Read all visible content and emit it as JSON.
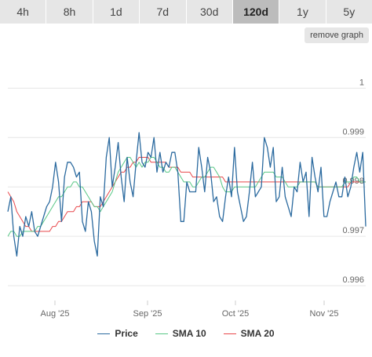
{
  "tabs": [
    {
      "label": "4h",
      "active": false
    },
    {
      "label": "8h",
      "active": false
    },
    {
      "label": "1d",
      "active": false
    },
    {
      "label": "7d",
      "active": false
    },
    {
      "label": "30d",
      "active": false
    },
    {
      "label": "120d",
      "active": true
    },
    {
      "label": "1y",
      "active": false
    },
    {
      "label": "5y",
      "active": false
    }
  ],
  "remove_graph_label": "remove graph",
  "colors": {
    "price": "#2b6a9f",
    "sma10": "#57c785",
    "sma20": "#e8474a",
    "grid": "#e6e6e6"
  },
  "chart_data": {
    "type": "line",
    "ylim": [
      0.9957,
      1.0008
    ],
    "y_ticks": [
      0.996,
      0.997,
      0.998,
      0.999,
      1
    ],
    "y_tick_labels": [
      "0.996",
      "0.997",
      "0.998",
      "0.999",
      "1"
    ],
    "x_tick_labels": [
      "Aug '25",
      "Sep '25",
      "Oct '25",
      "Nov '25"
    ],
    "legend_position": "bottom-center",
    "grid": true,
    "series": [
      {
        "name": "Price",
        "key": "price",
        "values": [
          0.9975,
          0.9978,
          0.997,
          0.9966,
          0.9972,
          0.997,
          0.9974,
          0.9972,
          0.9975,
          0.9971,
          0.997,
          0.9972,
          0.9974,
          0.9976,
          0.9977,
          0.998,
          0.9985,
          0.9981,
          0.9973,
          0.9982,
          0.9985,
          0.9985,
          0.9984,
          0.9982,
          0.9983,
          0.9973,
          0.9971,
          0.9977,
          0.9975,
          0.9969,
          0.9966,
          0.9978,
          0.9976,
          0.9986,
          0.999,
          0.998,
          0.9984,
          0.9989,
          0.9982,
          0.9977,
          0.9986,
          0.9981,
          0.9978,
          0.9985,
          0.9991,
          0.9985,
          0.9984,
          0.9987,
          0.9986,
          0.999,
          0.9983,
          0.9987,
          0.9983,
          0.9985,
          0.9984,
          0.9987,
          0.9987,
          0.9983,
          0.9973,
          0.9973,
          0.9981,
          0.9979,
          0.9979,
          0.9979,
          0.9988,
          0.9984,
          0.9979,
          0.9986,
          0.9983,
          0.9977,
          0.9978,
          0.9974,
          0.9973,
          0.9978,
          0.9982,
          0.9978,
          0.9988,
          0.9979,
          0.9976,
          0.9973,
          0.9974,
          0.9979,
          0.9985,
          0.9978,
          0.9979,
          0.998,
          0.999,
          0.9988,
          0.9984,
          0.9988,
          0.9977,
          0.9978,
          0.9984,
          0.9978,
          0.9976,
          0.9974,
          0.998,
          0.9979,
          0.9985,
          0.9981,
          0.9983,
          0.9974,
          0.9986,
          0.9982,
          0.9979,
          0.9984,
          0.9974,
          0.9974,
          0.9977,
          0.9979,
          0.9981,
          0.9978,
          0.9978,
          0.9982,
          0.9978,
          0.998,
          0.9984,
          0.9987,
          0.9983,
          0.9987,
          0.9972
        ]
      },
      {
        "name": "SMA 10",
        "key": "sma10",
        "values": [
          0.997,
          0.9971,
          0.9971,
          0.997,
          0.997,
          0.9971,
          0.9971,
          0.9971,
          0.9971,
          0.9971,
          0.9972,
          0.9972,
          0.9973,
          0.9974,
          0.9975,
          0.9976,
          0.9977,
          0.9978,
          0.9978,
          0.9979,
          0.998,
          0.998,
          0.9981,
          0.9981,
          0.998,
          0.998,
          0.9979,
          0.9978,
          0.9977,
          0.9976,
          0.9976,
          0.9975,
          0.9976,
          0.9977,
          0.9978,
          0.9979,
          0.9981,
          0.9983,
          0.9984,
          0.9985,
          0.9986,
          0.9986,
          0.9985,
          0.9984,
          0.9985,
          0.9984,
          0.9985,
          0.9985,
          0.9986,
          0.9986,
          0.9985,
          0.9984,
          0.9984,
          0.9983,
          0.9983,
          0.9984,
          0.9984,
          0.9983,
          0.9982,
          0.9981,
          0.9981,
          0.9981,
          0.998,
          0.998,
          0.9981,
          0.9982,
          0.9982,
          0.9983,
          0.9984,
          0.9984,
          0.9983,
          0.9982,
          0.998,
          0.9979,
          0.9979,
          0.9979,
          0.998,
          0.998,
          0.998,
          0.998,
          0.998,
          0.998,
          0.998,
          0.998,
          0.9981,
          0.9982,
          0.9983,
          0.9983,
          0.9983,
          0.9983,
          0.9982,
          0.9982,
          0.9982,
          0.9981,
          0.998,
          0.998,
          0.998,
          0.998,
          0.9981,
          0.9981,
          0.9981,
          0.9981,
          0.9981,
          0.9981,
          0.998,
          0.998,
          0.998,
          0.998,
          0.998,
          0.998,
          0.998,
          0.998,
          0.998,
          0.9981,
          0.9981,
          0.9981,
          0.9982,
          0.9982,
          0.9981,
          0.9981,
          0.9981
        ]
      },
      {
        "name": "SMA 20",
        "key": "sma20",
        "values": [
          0.9979,
          0.9978,
          0.9977,
          0.9975,
          0.9974,
          0.9973,
          0.9972,
          0.9972,
          0.9971,
          0.9971,
          0.9971,
          0.9971,
          0.9971,
          0.9971,
          0.9971,
          0.9972,
          0.9972,
          0.9973,
          0.9973,
          0.9974,
          0.9975,
          0.9975,
          0.9975,
          0.9976,
          0.9976,
          0.9977,
          0.9977,
          0.9977,
          0.9977,
          0.9976,
          0.9976,
          0.9976,
          0.9977,
          0.9978,
          0.9979,
          0.998,
          0.9981,
          0.9982,
          0.9983,
          0.9983,
          0.9984,
          0.9984,
          0.9985,
          0.9985,
          0.9986,
          0.9986,
          0.9986,
          0.9986,
          0.9985,
          0.9985,
          0.9985,
          0.9985,
          0.9985,
          0.9985,
          0.9984,
          0.9984,
          0.9984,
          0.9984,
          0.9983,
          0.9983,
          0.9983,
          0.9983,
          0.9982,
          0.9982,
          0.9982,
          0.9982,
          0.9982,
          0.9982,
          0.9982,
          0.9982,
          0.9982,
          0.9982,
          0.9982,
          0.9981,
          0.9981,
          0.9981,
          0.9981,
          0.9981,
          0.9981,
          0.9981,
          0.9981,
          0.9981,
          0.9981,
          0.9981,
          0.9981,
          0.9981,
          0.9981,
          0.9981,
          0.9981,
          0.9981,
          0.9981,
          0.9981,
          0.9981,
          0.9981,
          0.9981,
          0.9981,
          0.9981,
          0.9981,
          0.9981,
          0.9981,
          0.9981,
          0.9981,
          0.9981,
          0.9981,
          0.998,
          0.998,
          0.998,
          0.998,
          0.998,
          0.998,
          0.998,
          0.998,
          0.998,
          0.998,
          0.998,
          0.9981,
          0.9981,
          0.9981,
          0.9981,
          0.9981,
          0.9981
        ]
      }
    ]
  }
}
